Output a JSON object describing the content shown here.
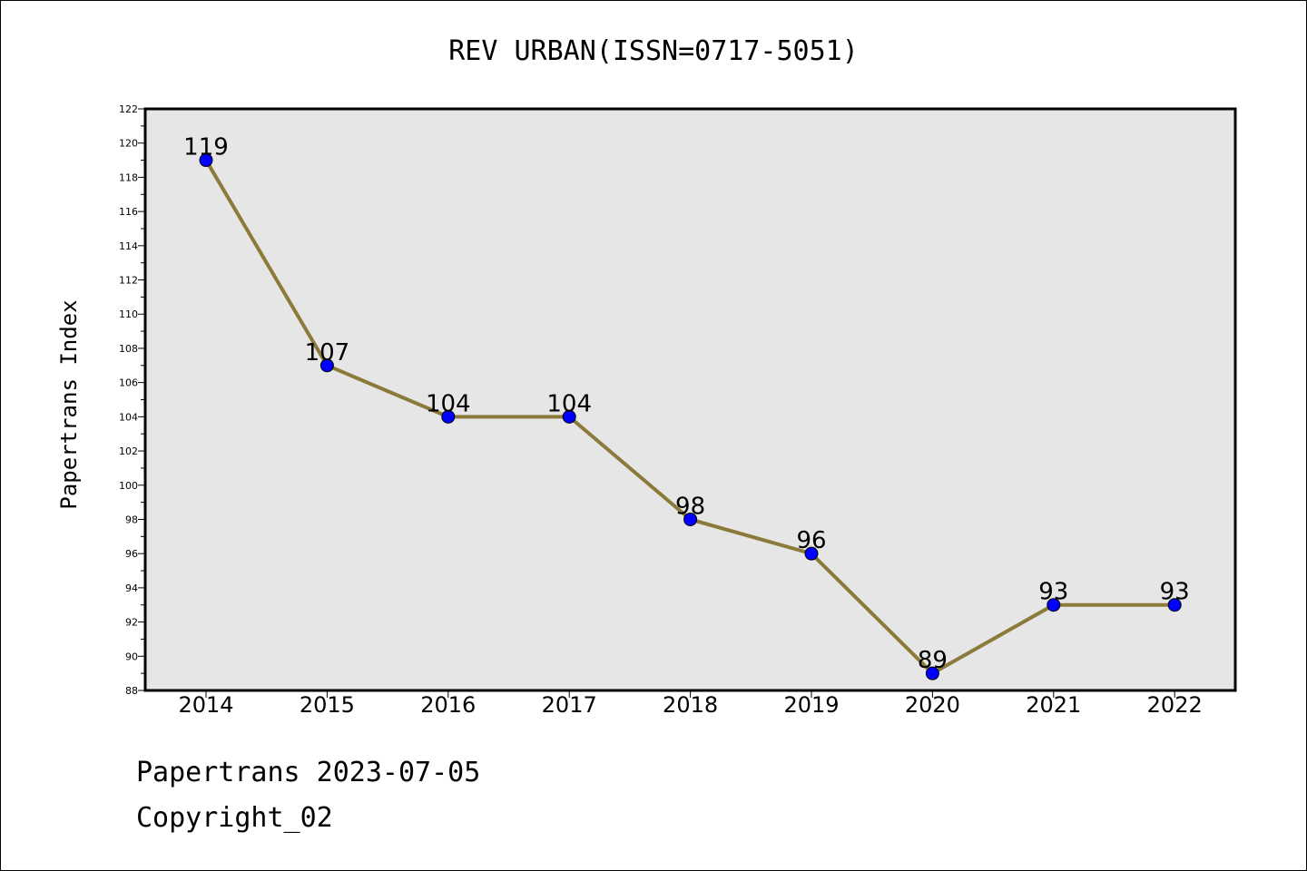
{
  "chart_data": {
    "type": "line",
    "title": "REV URBAN(ISSN=0717-5051)",
    "xlabel": "",
    "ylabel": "Papertrans Index",
    "categories": [
      "2014",
      "2015",
      "2016",
      "2017",
      "2018",
      "2019",
      "2020",
      "2021",
      "2022"
    ],
    "series": [
      {
        "values": [
          119,
          107,
          104,
          104,
          98,
          96,
          89,
          93,
          93
        ],
        "line_color": "#8b7a3a",
        "marker_color": "#0000ff"
      }
    ],
    "data_labels": [
      "119",
      "107",
      "104",
      "104",
      "98",
      "96",
      "89",
      "93",
      "93"
    ],
    "ylim": [
      88,
      122
    ],
    "y_ticks": [
      "88",
      "90",
      "92",
      "94",
      "96",
      "98",
      "100",
      "102",
      "104",
      "106",
      "108",
      "110",
      "112",
      "114",
      "116",
      "118",
      "120",
      "122"
    ],
    "grid": false,
    "plot_background": "#e6e6e6"
  },
  "footer": {
    "line1": "Papertrans 2023-07-05",
    "line2": "Copyright_02"
  }
}
